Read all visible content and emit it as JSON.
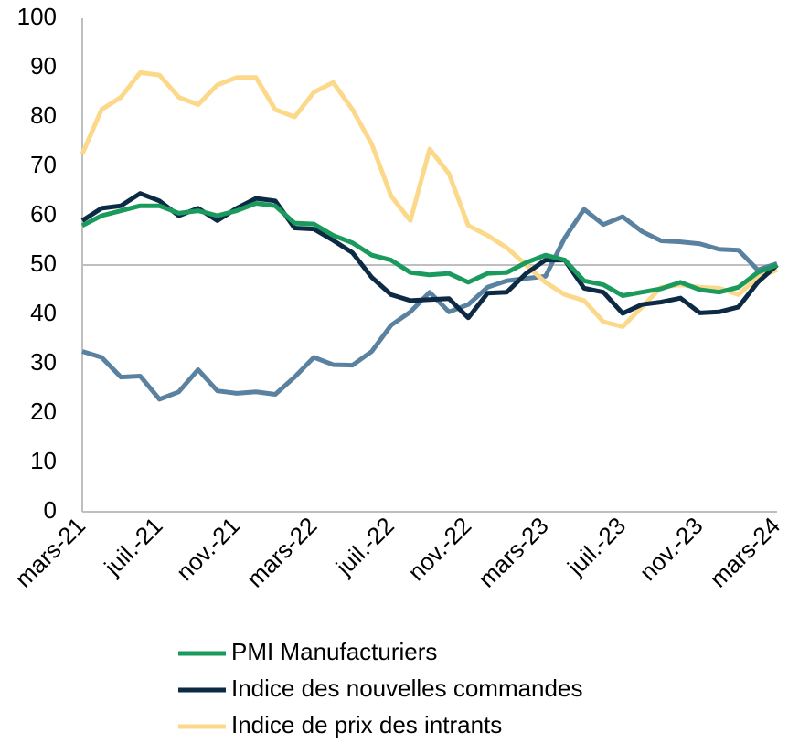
{
  "chart_data": {
    "type": "line",
    "categories": [
      "mars-21",
      null,
      null,
      null,
      "juil.-21",
      null,
      null,
      null,
      "nov.-21",
      null,
      null,
      null,
      "mars-22",
      null,
      null,
      null,
      "juil.-22",
      null,
      null,
      null,
      "nov.-22",
      null,
      null,
      null,
      "mars-23",
      null,
      null,
      null,
      "juil.-23",
      null,
      null,
      null,
      "nov.-23",
      null,
      null,
      null,
      "mars-24"
    ],
    "series": [
      {
        "name": "PMI Manufacturiers",
        "color": "#1a9a5c",
        "values": [
          58,
          60,
          61,
          62,
          62,
          60.5,
          61,
          60,
          61,
          62.5,
          62,
          58.5,
          58.3,
          56,
          54.5,
          52,
          51,
          48.5,
          48,
          48.3,
          46.5,
          48.3,
          48.5,
          50.5,
          52,
          51,
          46.8,
          46,
          43.8,
          44.5,
          45.2,
          46.5,
          45,
          44.5,
          45.5,
          48.5,
          50
        ]
      },
      {
        "name": "Indice des nouvelles commandes",
        "color": "#0d2a45",
        "values": [
          59,
          61.5,
          62,
          64.5,
          63,
          60,
          61.5,
          59,
          61.5,
          63.5,
          63,
          57.5,
          57.3,
          55,
          52.5,
          47.5,
          44,
          42.8,
          43,
          43.2,
          39.3,
          44.3,
          44.5,
          48.3,
          51,
          51,
          45.3,
          44.5,
          40.2,
          42,
          42.5,
          43.3,
          40.3,
          40.5,
          41.5,
          46.5,
          50
        ]
      },
      {
        "name": "Indice de prix des intrants",
        "color": "#fcd98a",
        "values": [
          72.5,
          81.5,
          84,
          89,
          88.5,
          84,
          82.5,
          86.5,
          88,
          88,
          81.5,
          80,
          85,
          87,
          81.5,
          74.5,
          64,
          59,
          73.5,
          68.5,
          58,
          56,
          53.5,
          50,
          46.5,
          44,
          42.8,
          38.5,
          37.5,
          41.5,
          45.5,
          46,
          45.5,
          45.3,
          44,
          47.5,
          49
        ]
      },
      {
        "color": "#5a82a0",
        "values": [
          32.5,
          31.3,
          27.3,
          27.5,
          22.8,
          24.3,
          28.8,
          24.5,
          24,
          24.3,
          23.8,
          27.3,
          31.3,
          29.8,
          29.7,
          32.5,
          37.8,
          40.5,
          44.5,
          40.5,
          42,
          45.5,
          46.8,
          47.3,
          47.7,
          55.5,
          61.3,
          58.2,
          59.8,
          56.8,
          54.9,
          54.7,
          54.3,
          53.2,
          53,
          49,
          50.3
        ]
      }
    ],
    "ylim": [
      0,
      100
    ],
    "yticks": [
      0,
      10,
      20,
      30,
      40,
      50,
      60,
      70,
      80,
      90,
      100
    ],
    "hline": 50
  }
}
